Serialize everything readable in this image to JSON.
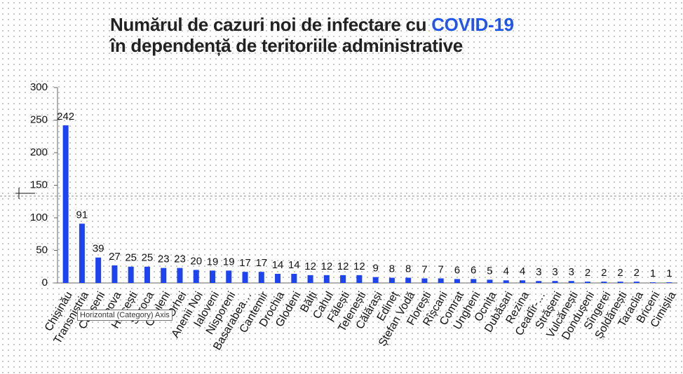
{
  "chart_data": {
    "type": "bar",
    "title_part1": "Numărul de cazuri noi de infectare cu",
    "title_highlight": "COVID-19",
    "title_line2": "în dependență de teritoriile administrative",
    "tooltip": "Horizontal (Category) Axis",
    "categories": [
      "Chișinău",
      "Transnistria",
      "Căușeni",
      "Leova",
      "Hîncești",
      "Soroca",
      "Criuleni",
      "Orhei",
      "Anenii Noi",
      "Ialoveni",
      "Nisporeni",
      "Basarabea…",
      "Cantemir",
      "Drochia",
      "Glodeni",
      "Bălți",
      "Cahul",
      "Fălești",
      "Telenești",
      "Călărași",
      "Edineț",
      "Ștefan Vodă",
      "Florești",
      "Rîșcani",
      "Comrat",
      "Ungheni",
      "Ocnița",
      "Dubăsari",
      "Rezina",
      "Ceadîr-…",
      "Strășeni",
      "Vulcănești",
      "Dondușeni",
      "Sîngerei",
      "Șoldănești",
      "Taraclia",
      "Briceni",
      "Cimișlia"
    ],
    "values": [
      242,
      91,
      39,
      27,
      25,
      25,
      23,
      23,
      20,
      19,
      19,
      17,
      17,
      14,
      14,
      12,
      12,
      12,
      12,
      9,
      8,
      8,
      7,
      7,
      6,
      6,
      5,
      4,
      4,
      3,
      3,
      3,
      2,
      2,
      2,
      2,
      1,
      1
    ],
    "color": "#1d44f0",
    "ylim": [
      0,
      300
    ],
    "yticks": [
      0,
      50,
      100,
      150,
      200,
      250,
      300
    ]
  }
}
